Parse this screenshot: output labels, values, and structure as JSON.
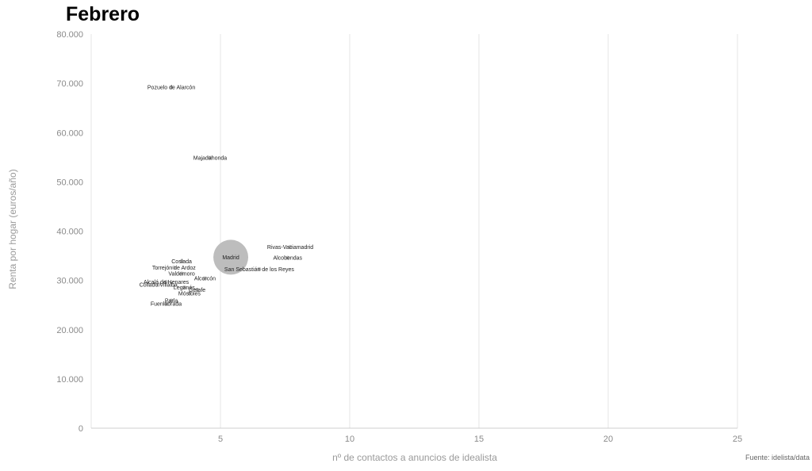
{
  "chart_data": {
    "type": "scatter",
    "title": "Febrero",
    "xlabel": "nº de contactos a anuncios de idealista",
    "ylabel": "Renta por hogar (euros/año)",
    "xlim": [
      0,
      25
    ],
    "ylim": [
      0,
      80000
    ],
    "x_ticks": [
      5,
      10,
      15,
      20,
      25
    ],
    "x_tick_labels": [
      "5",
      "10",
      "15",
      "20",
      "25"
    ],
    "y_ticks": [
      0,
      10000,
      20000,
      30000,
      40000,
      50000,
      60000,
      70000,
      80000
    ],
    "y_tick_labels": [
      "0",
      "10.000",
      "20.000",
      "30.000",
      "40.000",
      "50.000",
      "60.000",
      "70.000",
      "80.000"
    ],
    "grid": "vertical",
    "source": "Fuente: idelista/data",
    "point_color": "#bdbdbd",
    "points": [
      {
        "name": "Pozuelo de Alarcón",
        "x": 3.1,
        "y": 69200,
        "size": "small"
      },
      {
        "name": "Majadahonda",
        "x": 4.6,
        "y": 54900,
        "size": "small"
      },
      {
        "name": "Madrid",
        "x": 5.4,
        "y": 34700,
        "size": "large"
      },
      {
        "name": "Rivas-Vaciamadrid",
        "x": 7.7,
        "y": 36800,
        "size": "small"
      },
      {
        "name": "Alcobendas",
        "x": 7.6,
        "y": 34600,
        "size": "small"
      },
      {
        "name": "San Sebastián de los Reyes",
        "x": 6.5,
        "y": 32300,
        "size": "small"
      },
      {
        "name": "Coslada",
        "x": 3.5,
        "y": 33900,
        "size": "small"
      },
      {
        "name": "Torrejón de Ardoz",
        "x": 3.2,
        "y": 32600,
        "size": "small"
      },
      {
        "name": "Valdemoro",
        "x": 3.5,
        "y": 31400,
        "size": "small"
      },
      {
        "name": "Alcorcón",
        "x": 4.4,
        "y": 30400,
        "size": "small"
      },
      {
        "name": "Alcalá de Henares",
        "x": 2.9,
        "y": 29700,
        "size": "small"
      },
      {
        "name": "Collado Villalba",
        "x": 2.6,
        "y": 29100,
        "size": "small"
      },
      {
        "name": "Leganés",
        "x": 3.6,
        "y": 28600,
        "size": "small"
      },
      {
        "name": "Getafe",
        "x": 4.1,
        "y": 28100,
        "size": "small"
      },
      {
        "name": "Móstoles",
        "x": 3.8,
        "y": 27400,
        "size": "small"
      },
      {
        "name": "Parla",
        "x": 3.1,
        "y": 25900,
        "size": "small"
      },
      {
        "name": "Fuenlabrada",
        "x": 2.9,
        "y": 25300,
        "size": "small"
      }
    ]
  }
}
